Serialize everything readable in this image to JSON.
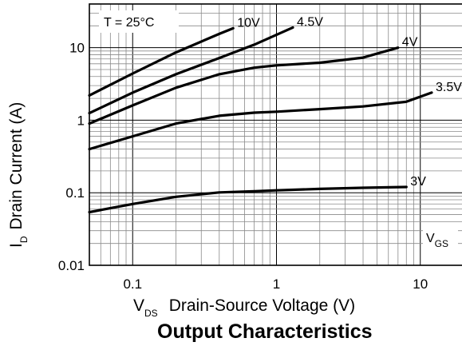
{
  "chart_data": {
    "type": "line",
    "title": "Output Characteristics",
    "xlabel": {
      "symbol": "V",
      "subscript": "DS",
      "text": "Drain-Source Voltage (V)"
    },
    "ylabel": {
      "symbol": "I",
      "subscript": "D",
      "text": "Drain Current (A)"
    },
    "x_scale": "log",
    "y_scale": "log",
    "xlim": [
      0.05,
      20
    ],
    "ylim": [
      0.01,
      40
    ],
    "x_ticks": [
      {
        "value": 0.1,
        "label": "0.1"
      },
      {
        "value": 1,
        "label": "1"
      },
      {
        "value": 10,
        "label": "10"
      }
    ],
    "y_ticks": [
      {
        "value": 0.01,
        "label": "0.01"
      },
      {
        "value": 0.1,
        "label": "0.1"
      },
      {
        "value": 1,
        "label": "1"
      },
      {
        "value": 10,
        "label": "10"
      }
    ],
    "grid": true,
    "annotation": "T = 25°C",
    "legend_title": {
      "symbol": "V",
      "subscript": "GS"
    },
    "series": [
      {
        "name": "10V",
        "points": [
          [
            0.05,
            2.2
          ],
          [
            0.1,
            4.4
          ],
          [
            0.2,
            8.6
          ],
          [
            0.4,
            15.5
          ],
          [
            0.5,
            18.5
          ]
        ]
      },
      {
        "name": "4.5V",
        "points": [
          [
            0.05,
            1.25
          ],
          [
            0.1,
            2.4
          ],
          [
            0.2,
            4.3
          ],
          [
            0.4,
            7.2
          ],
          [
            0.7,
            11
          ],
          [
            1.3,
            19
          ]
        ]
      },
      {
        "name": "4V",
        "points": [
          [
            0.05,
            0.9
          ],
          [
            0.1,
            1.6
          ],
          [
            0.2,
            2.8
          ],
          [
            0.4,
            4.3
          ],
          [
            0.7,
            5.3
          ],
          [
            1,
            5.7
          ],
          [
            2,
            6.2
          ],
          [
            4,
            7.3
          ],
          [
            7,
            10
          ]
        ]
      },
      {
        "name": "3.5V",
        "points": [
          [
            0.05,
            0.4
          ],
          [
            0.1,
            0.6
          ],
          [
            0.2,
            0.9
          ],
          [
            0.4,
            1.15
          ],
          [
            0.7,
            1.27
          ],
          [
            1,
            1.31
          ],
          [
            2,
            1.42
          ],
          [
            4,
            1.55
          ],
          [
            8,
            1.8
          ],
          [
            12,
            2.4
          ]
        ]
      },
      {
        "name": "3V",
        "points": [
          [
            0.05,
            0.054
          ],
          [
            0.1,
            0.07
          ],
          [
            0.2,
            0.088
          ],
          [
            0.4,
            0.101
          ],
          [
            0.7,
            0.105
          ],
          [
            1,
            0.108
          ],
          [
            2,
            0.113
          ],
          [
            4,
            0.117
          ],
          [
            8,
            0.12
          ]
        ]
      }
    ]
  }
}
